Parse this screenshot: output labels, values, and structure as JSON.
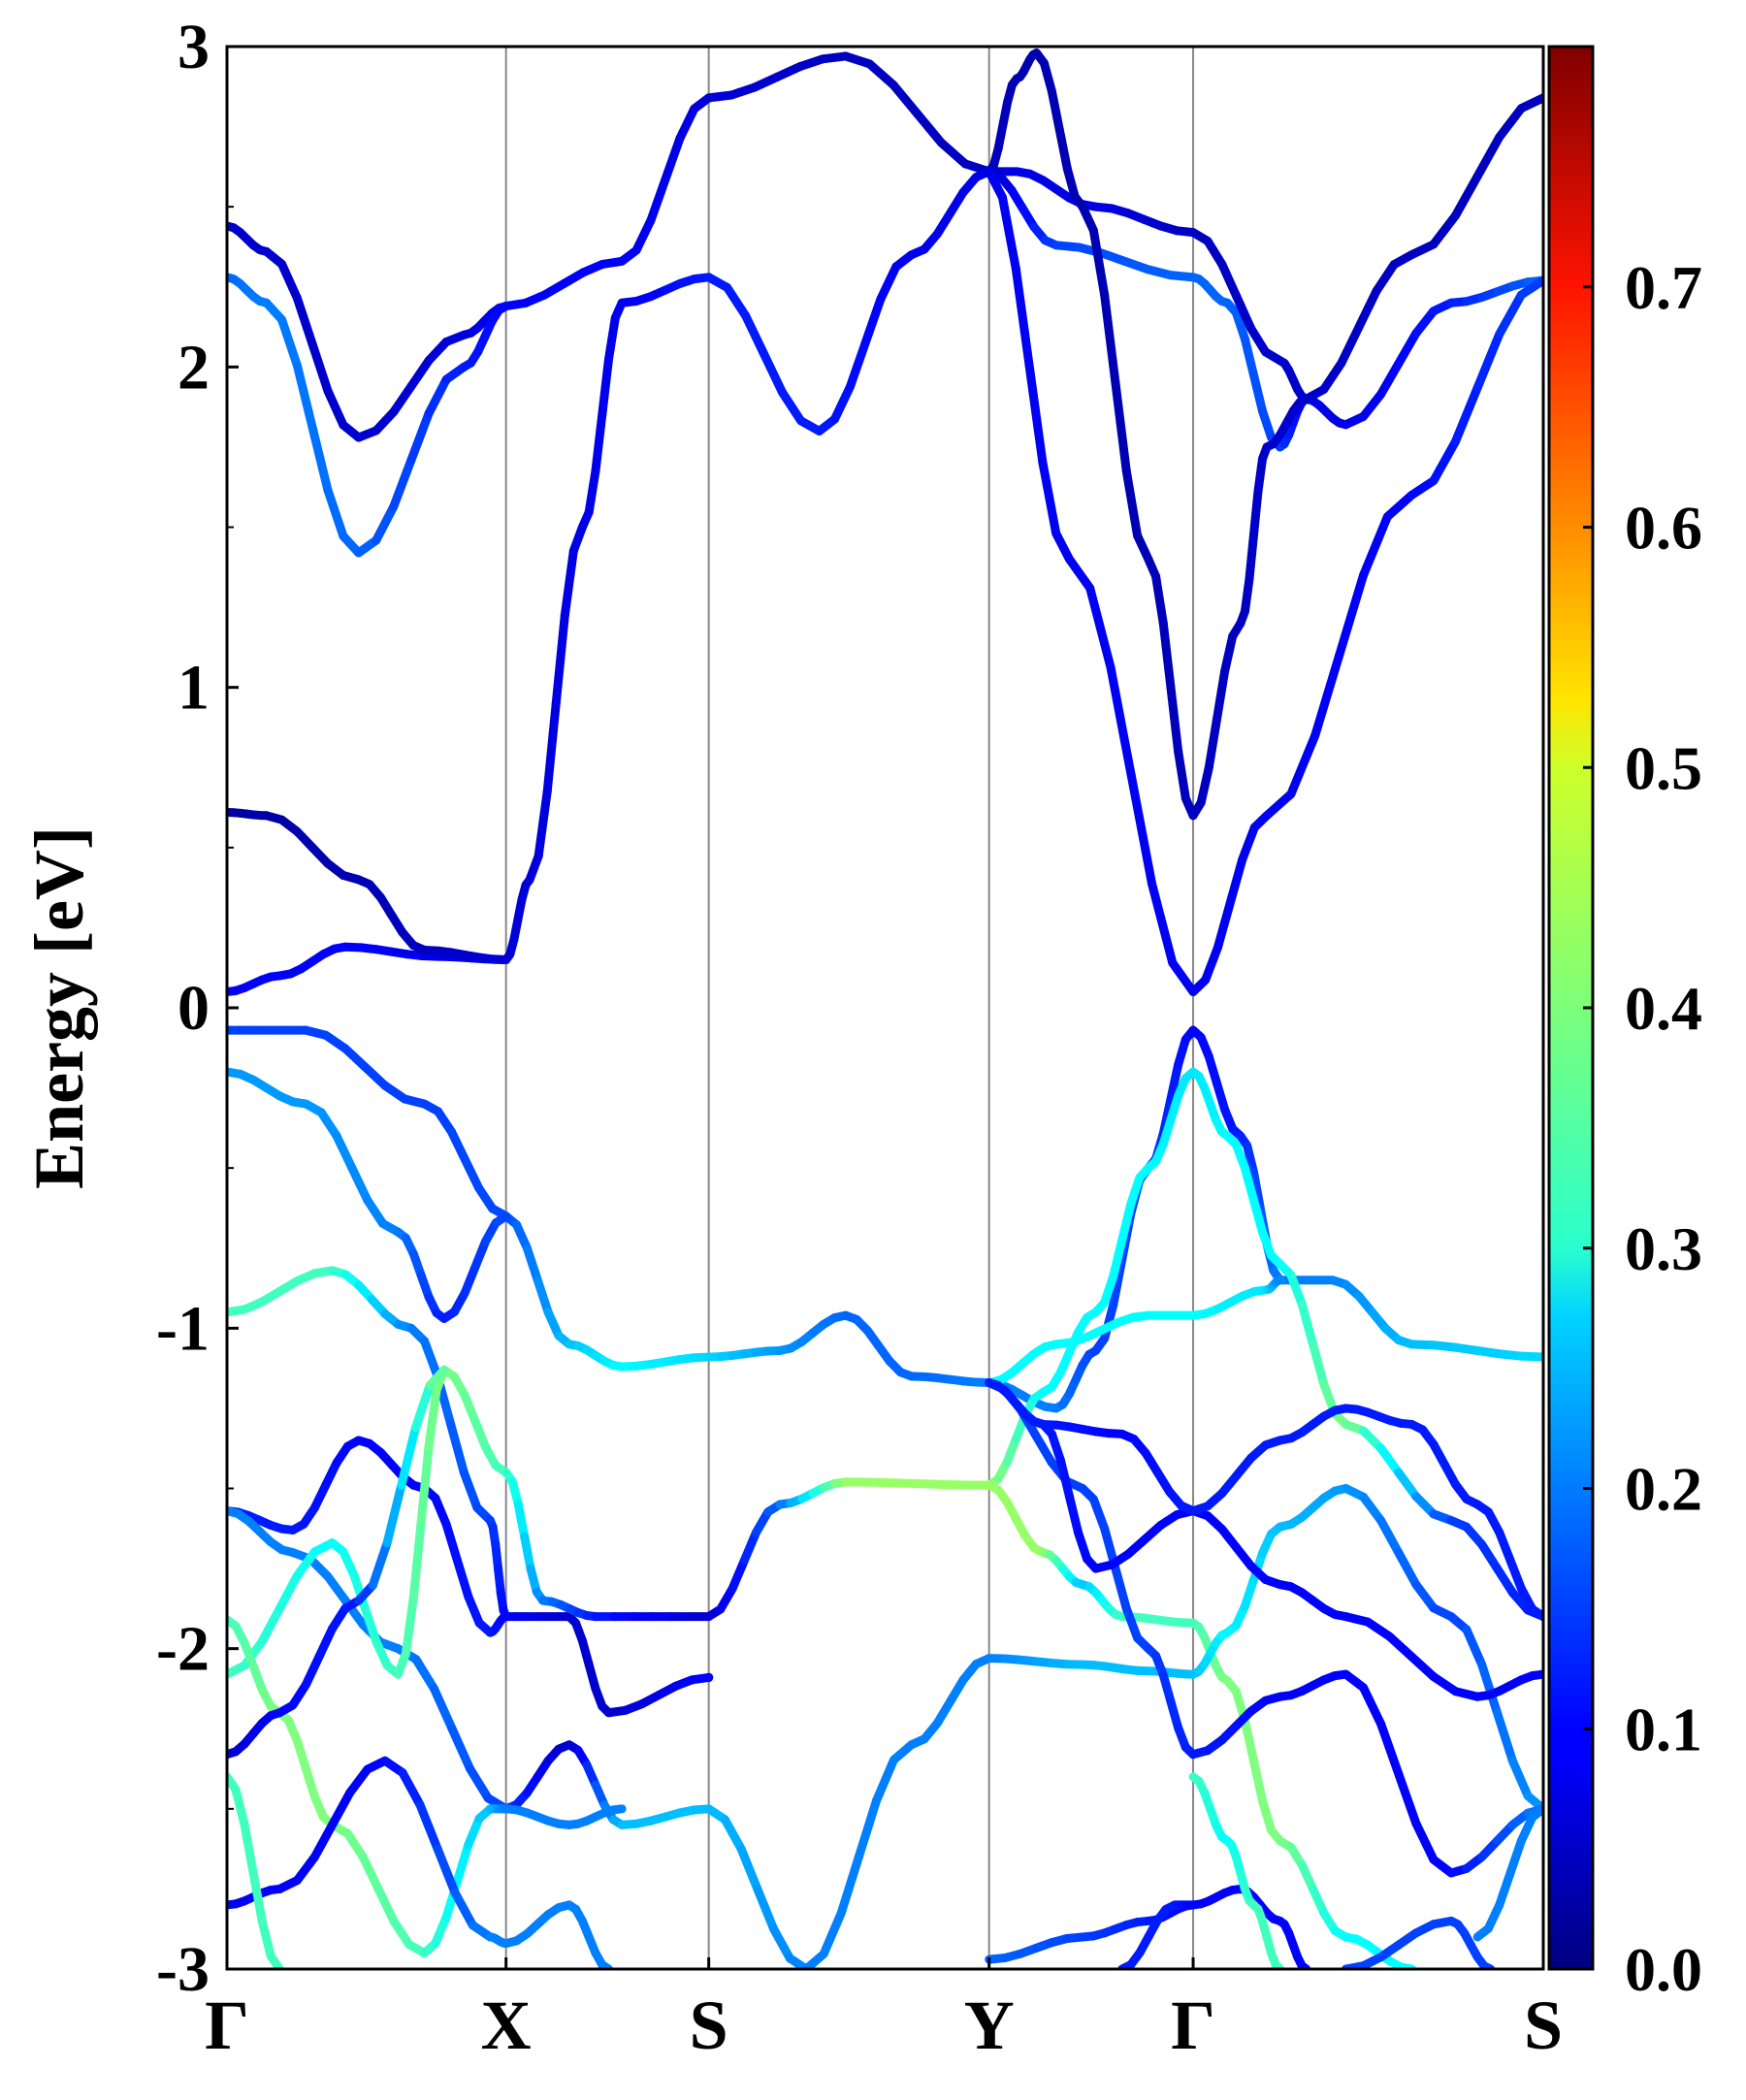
{
  "chart_data": {
    "type": "line",
    "title": "",
    "xlabel": "",
    "ylabel": "Energy [eV]",
    "ylim": [
      -3,
      3
    ],
    "xlim": [
      0,
      1
    ],
    "y_ticks": [
      "-3",
      "-2",
      "-1",
      "0",
      "1",
      "2",
      "3"
    ],
    "y_tick_values": [
      -3,
      -2,
      -1,
      0,
      1,
      2,
      3
    ],
    "k_path_labels": [
      "Γ",
      "X",
      "S",
      "Y",
      "Γ",
      "S"
    ],
    "k_path_positions": [
      0,
      0.212,
      0.366,
      0.579,
      0.734,
      1
    ],
    "grid": "vertical lines at high-symmetry points",
    "colorbar": {
      "label": "",
      "range": [
        0.0,
        0.8
      ],
      "ticks": [
        "0.0",
        "0.1",
        "0.2",
        "0.3",
        "0.4",
        "0.5",
        "0.6",
        "0.7"
      ],
      "tick_values": [
        0,
        0.1,
        0.2,
        0.3,
        0.4,
        0.5,
        0.6,
        0.7
      ],
      "colormap": "jet"
    },
    "series": [
      {
        "points": [
          [
            0,
            2.44,
            0.06
          ],
          [
            0.03,
            2.36,
            0.06
          ],
          [
            0.1,
            1.78,
            0.06
          ],
          [
            0.18,
            2.1,
            0.07
          ],
          [
            0.212,
            2.19,
            0.1
          ],
          [
            0.3,
            2.33,
            0.1
          ],
          [
            0.366,
            2.84,
            0.07
          ],
          [
            0.47,
            2.97,
            0.05
          ],
          [
            0.579,
            2.61,
            0.05
          ],
          [
            0.63,
            2.38,
            0.15
          ],
          [
            0.734,
            2.28,
            0.18
          ],
          [
            0.76,
            2.2,
            0.18
          ],
          [
            0.8,
            1.75,
            0.15
          ],
          [
            0.82,
            1.9,
            0.08
          ],
          [
            0.85,
            1.82,
            0.08
          ],
          [
            0.93,
            2.2,
            0.12
          ],
          [
            1,
            2.27,
            0.18
          ]
        ]
      },
      {
        "points": [
          [
            0,
            2.28,
            0.18
          ],
          [
            0.03,
            2.2,
            0.2
          ],
          [
            0.1,
            1.42,
            0.18
          ],
          [
            0.18,
            2.0,
            0.12
          ],
          [
            0.212,
            2.19,
            0.1
          ]
        ]
      },
      {
        "points": [
          [
            0.579,
            2.61,
            0.05
          ],
          [
            0.6,
            2.61,
            0.08
          ],
          [
            0.66,
            2.5,
            0.08
          ],
          [
            0.734,
            2.42,
            0.05
          ],
          [
            0.8,
            2.02,
            0.06
          ],
          [
            0.82,
            1.9,
            0.06
          ],
          [
            0.9,
            2.35,
            0.05
          ],
          [
            1,
            2.84,
            0.05
          ]
        ]
      },
      {
        "points": [
          [
            0.579,
            2.61,
            0.05
          ],
          [
            0.6,
            2.9,
            0.04
          ],
          [
            0.615,
            2.98,
            0.04
          ],
          [
            0.65,
            2.5,
            0.04
          ],
          [
            0.7,
            1.4,
            0.04
          ],
          [
            0.734,
            0.6,
            0.05
          ],
          [
            0.77,
            1.2,
            0.05
          ],
          [
            0.79,
            1.75,
            0.06
          ],
          [
            0.82,
            1.9,
            0.06
          ]
        ]
      },
      {
        "points": [
          [
            0.579,
            2.61,
            0.09
          ],
          [
            0.64,
            1.4,
            0.09
          ],
          [
            0.734,
            0.05,
            0.09
          ],
          [
            0.79,
            0.6,
            0.09
          ],
          [
            0.9,
            1.6,
            0.1
          ],
          [
            1,
            2.27,
            0.15
          ]
        ]
      },
      {
        "points": [
          [
            0,
            0.05,
            0.1
          ],
          [
            0.04,
            0.1,
            0.1
          ],
          [
            0.09,
            0.19,
            0.1
          ],
          [
            0.16,
            0.16,
            0.08
          ],
          [
            0.212,
            0.15,
            0.07
          ],
          [
            0.23,
            0.4,
            0.07
          ],
          [
            0.27,
            1.5,
            0.08
          ],
          [
            0.3,
            2.2,
            0.09
          ],
          [
            0.366,
            2.28,
            0.12
          ],
          [
            0.45,
            1.8,
            0.12
          ],
          [
            0.52,
            2.35,
            0.09
          ],
          [
            0.579,
            2.61,
            0.08
          ]
        ]
      },
      {
        "points": [
          [
            0,
            0.61,
            0.03
          ],
          [
            0.03,
            0.6,
            0.03
          ],
          [
            0.1,
            0.4,
            0.04
          ],
          [
            0.15,
            0.18,
            0.05
          ],
          [
            0.212,
            0.15,
            0.07
          ]
        ]
      },
      {
        "points": [
          [
            0,
            -0.07,
            0.15
          ],
          [
            0.06,
            -0.07,
            0.15
          ],
          [
            0.15,
            -0.3,
            0.15
          ],
          [
            0.212,
            -0.65,
            0.16
          ],
          [
            0.26,
            -1.05,
            0.25
          ],
          [
            0.3,
            -1.12,
            0.3
          ],
          [
            0.366,
            -1.09,
            0.27
          ],
          [
            0.42,
            -1.07,
            0.22
          ],
          [
            0.47,
            -0.96,
            0.18
          ],
          [
            0.52,
            -1.15,
            0.18
          ],
          [
            0.579,
            -1.17,
            0.2
          ],
          [
            0.63,
            -1.25,
            0.2
          ],
          [
            0.66,
            -1.07,
            0.15
          ],
          [
            0.7,
            -0.5,
            0.15
          ],
          [
            0.734,
            -0.07,
            0.1
          ],
          [
            0.77,
            -0.4,
            0.12
          ],
          [
            0.8,
            -0.85,
            0.2
          ],
          [
            0.84,
            -0.85,
            0.2
          ],
          [
            0.9,
            -1.05,
            0.25
          ],
          [
            1,
            -1.09,
            0.27
          ]
        ]
      },
      {
        "points": [
          [
            0,
            -0.2,
            0.22
          ],
          [
            0.06,
            -0.3,
            0.22
          ],
          [
            0.13,
            -0.7,
            0.2
          ],
          [
            0.165,
            -0.97,
            0.12
          ],
          [
            0.212,
            -0.65,
            0.16
          ]
        ]
      },
      {
        "points": [
          [
            0,
            -0.95,
            0.35
          ],
          [
            0.08,
            -0.82,
            0.35
          ],
          [
            0.14,
            -1.0,
            0.2
          ],
          [
            0.2,
            -1.6,
            0.15
          ],
          [
            0.212,
            -1.9,
            0.1
          ],
          [
            0.26,
            -1.9,
            0.06
          ],
          [
            0.29,
            -2.2,
            0.06
          ],
          [
            0.366,
            -2.09,
            0.1
          ],
          [
            0.366,
            -2.09,
            0.1
          ]
        ]
      },
      {
        "points": [
          [
            0.579,
            -1.17,
            0.3
          ],
          [
            0.63,
            -1.05,
            0.3
          ],
          [
            0.7,
            -0.96,
            0.3
          ],
          [
            0.734,
            -0.96,
            0.3
          ],
          [
            0.79,
            -0.88,
            0.28
          ],
          [
            0.8,
            -0.85,
            0.2
          ]
        ]
      },
      {
        "points": [
          [
            0.579,
            -1.49,
            0.42
          ],
          [
            0.62,
            -1.7,
            0.42
          ],
          [
            0.65,
            -1.8,
            0.25
          ],
          [
            0.68,
            -1.9,
            0.35
          ],
          [
            0.734,
            -1.92,
            0.35
          ],
          [
            0.76,
            -2.1,
            0.4
          ],
          [
            0.8,
            -2.6,
            0.4
          ],
          [
            0.85,
            -2.9,
            0.3
          ],
          [
            0.9,
            -3.0,
            0.3
          ]
        ]
      },
      {
        "points": [
          [
            0.579,
            -1.49,
            0.42
          ],
          [
            0.62,
            -1.2,
            0.3
          ],
          [
            0.66,
            -0.95,
            0.3
          ],
          [
            0.7,
            -0.5,
            0.3
          ],
          [
            0.734,
            -0.2,
            0.28
          ],
          [
            0.76,
            -0.4,
            0.3
          ],
          [
            0.8,
            -0.8,
            0.3
          ],
          [
            0.85,
            -1.3,
            0.4
          ],
          [
            0.93,
            -1.6,
            0.15
          ],
          [
            1,
            -1.9,
            0.12
          ]
        ]
      },
      {
        "points": [
          [
            0.366,
            -1.9,
            0.06
          ],
          [
            0.42,
            -1.55,
            0.18
          ],
          [
            0.47,
            -1.48,
            0.42
          ],
          [
            0.579,
            -1.49,
            0.42
          ]
        ]
      },
      {
        "points": [
          [
            0,
            -1.57,
            0.12
          ],
          [
            0.05,
            -1.63,
            0.12
          ],
          [
            0.1,
            -1.35,
            0.1
          ],
          [
            0.15,
            -1.5,
            0.1
          ],
          [
            0.2,
            -1.95,
            0.12
          ],
          [
            0.212,
            -1.9,
            0.1
          ]
        ]
      },
      {
        "points": [
          [
            0,
            -1.57,
            0.2
          ],
          [
            0.05,
            -1.7,
            0.2
          ],
          [
            0.13,
            -2.0,
            0.2
          ],
          [
            0.212,
            -2.5,
            0.15
          ],
          [
            0.26,
            -2.3,
            0.05
          ],
          [
            0.3,
            -2.55,
            0.25
          ],
          [
            0.366,
            -2.5,
            0.25
          ],
          [
            0.44,
            -3.0,
            0.2
          ]
        ]
      },
      {
        "points": [
          [
            0,
            -2.08,
            0.35
          ],
          [
            0.08,
            -1.67,
            0.3
          ],
          [
            0.13,
            -2.08,
            0.35
          ],
          [
            0.165,
            -1.13,
            0.4
          ],
          [
            0.212,
            -1.45,
            0.35
          ],
          [
            0.24,
            -1.85,
            0.2
          ],
          [
            0.28,
            -1.9,
            0.12
          ],
          [
            0.366,
            -1.9,
            0.06
          ]
        ]
      },
      {
        "points": [
          [
            0,
            -1.91,
            0.35
          ],
          [
            0.04,
            -2.2,
            0.4
          ],
          [
            0.08,
            -2.55,
            0.4
          ],
          [
            0.15,
            -2.95,
            0.35
          ],
          [
            0.2,
            -2.5,
            0.25
          ],
          [
            0.212,
            -2.5,
            0.2
          ],
          [
            0.26,
            -2.55,
            0.2
          ],
          [
            0.3,
            -2.5,
            0.2
          ]
        ]
      },
      {
        "points": [
          [
            0,
            -2.33,
            0.06
          ],
          [
            0.04,
            -2.2,
            0.1
          ],
          [
            0.1,
            -1.85,
            0.12
          ],
          [
            0.165,
            -1.13,
            0.4
          ]
        ]
      },
      {
        "points": [
          [
            0,
            -2.8,
            0.1
          ],
          [
            0.04,
            -2.75,
            0.1
          ],
          [
            0.12,
            -2.35,
            0.1
          ],
          [
            0.2,
            -2.9,
            0.2
          ],
          [
            0.212,
            -2.92,
            0.2
          ],
          [
            0.26,
            -2.8,
            0.2
          ],
          [
            0.29,
            -3.0,
            0.2
          ]
        ]
      },
      {
        "points": [
          [
            0,
            -2.4,
            0.35
          ],
          [
            0.04,
            -3.0,
            0.35
          ]
        ]
      },
      {
        "points": [
          [
            0.44,
            -3.0,
            0.2
          ],
          [
            0.52,
            -2.3,
            0.2
          ],
          [
            0.579,
            -2.03,
            0.2
          ],
          [
            0.65,
            -2.05,
            0.25
          ],
          [
            0.7,
            -2.07,
            0.25
          ],
          [
            0.734,
            -2.08,
            0.25
          ],
          [
            0.76,
            -1.95,
            0.3
          ],
          [
            0.8,
            -1.62,
            0.25
          ],
          [
            0.85,
            -1.5,
            0.22
          ],
          [
            0.93,
            -1.9,
            0.15
          ],
          [
            1,
            -2.5,
            0.22
          ]
        ]
      },
      {
        "points": [
          [
            0.579,
            -1.17,
            0.15
          ],
          [
            0.65,
            -1.5,
            0.15
          ],
          [
            0.7,
            -2.0,
            0.15
          ],
          [
            0.734,
            -2.33,
            0.12
          ],
          [
            0.8,
            -2.15,
            0.1
          ],
          [
            0.85,
            -2.08,
            0.1
          ],
          [
            0.93,
            -2.7,
            0.1
          ],
          [
            1,
            -2.5,
            0.2
          ]
        ]
      },
      {
        "points": [
          [
            0.579,
            -1.17,
            0.12
          ],
          [
            0.62,
            -1.3,
            0.12
          ],
          [
            0.66,
            -1.75,
            0.1
          ],
          [
            0.734,
            -1.57,
            0.1
          ],
          [
            0.8,
            -1.8,
            0.1
          ],
          [
            0.85,
            -1.9,
            0.1
          ],
          [
            0.95,
            -2.15,
            0.1
          ],
          [
            1,
            -2.08,
            0.1
          ]
        ]
      },
      {
        "points": [
          [
            0.579,
            -1.17,
            0.12
          ],
          [
            0.62,
            -1.3,
            0.12
          ],
          [
            0.68,
            -1.33,
            0.1
          ],
          [
            0.734,
            -1.57,
            0.12
          ],
          [
            0.8,
            -1.35,
            0.12
          ],
          [
            0.85,
            -1.25,
            0.12
          ],
          [
            0.9,
            -1.3,
            0.12
          ],
          [
            0.95,
            -1.55,
            0.12
          ],
          [
            1,
            -1.9,
            0.12
          ]
        ]
      },
      {
        "points": [
          [
            0.579,
            -2.97,
            0.18
          ],
          [
            0.65,
            -2.9,
            0.15
          ],
          [
            0.7,
            -2.85,
            0.12
          ],
          [
            0.734,
            -2.8,
            0.1
          ],
          [
            0.77,
            -2.75,
            0.1
          ],
          [
            0.8,
            -2.85,
            0.1
          ],
          [
            0.82,
            -3.0,
            0.1
          ]
        ]
      },
      {
        "points": [
          [
            0.734,
            -2.4,
            0.35
          ],
          [
            0.76,
            -2.6,
            0.3
          ],
          [
            0.78,
            -2.8,
            0.35
          ],
          [
            0.8,
            -3.0,
            0.35
          ]
        ]
      },
      {
        "points": [
          [
            0.68,
            -3.0,
            0.12
          ],
          [
            0.72,
            -2.8,
            0.12
          ],
          [
            0.734,
            -2.8,
            0.1
          ]
        ]
      },
      {
        "points": [
          [
            0.85,
            -3.0,
            0.15
          ],
          [
            0.93,
            -2.85,
            0.15
          ],
          [
            0.96,
            -3.0,
            0.15
          ]
        ]
      },
      {
        "points": [
          [
            0.95,
            -2.9,
            0.2
          ],
          [
            1,
            -2.5,
            0.2
          ]
        ]
      }
    ]
  }
}
